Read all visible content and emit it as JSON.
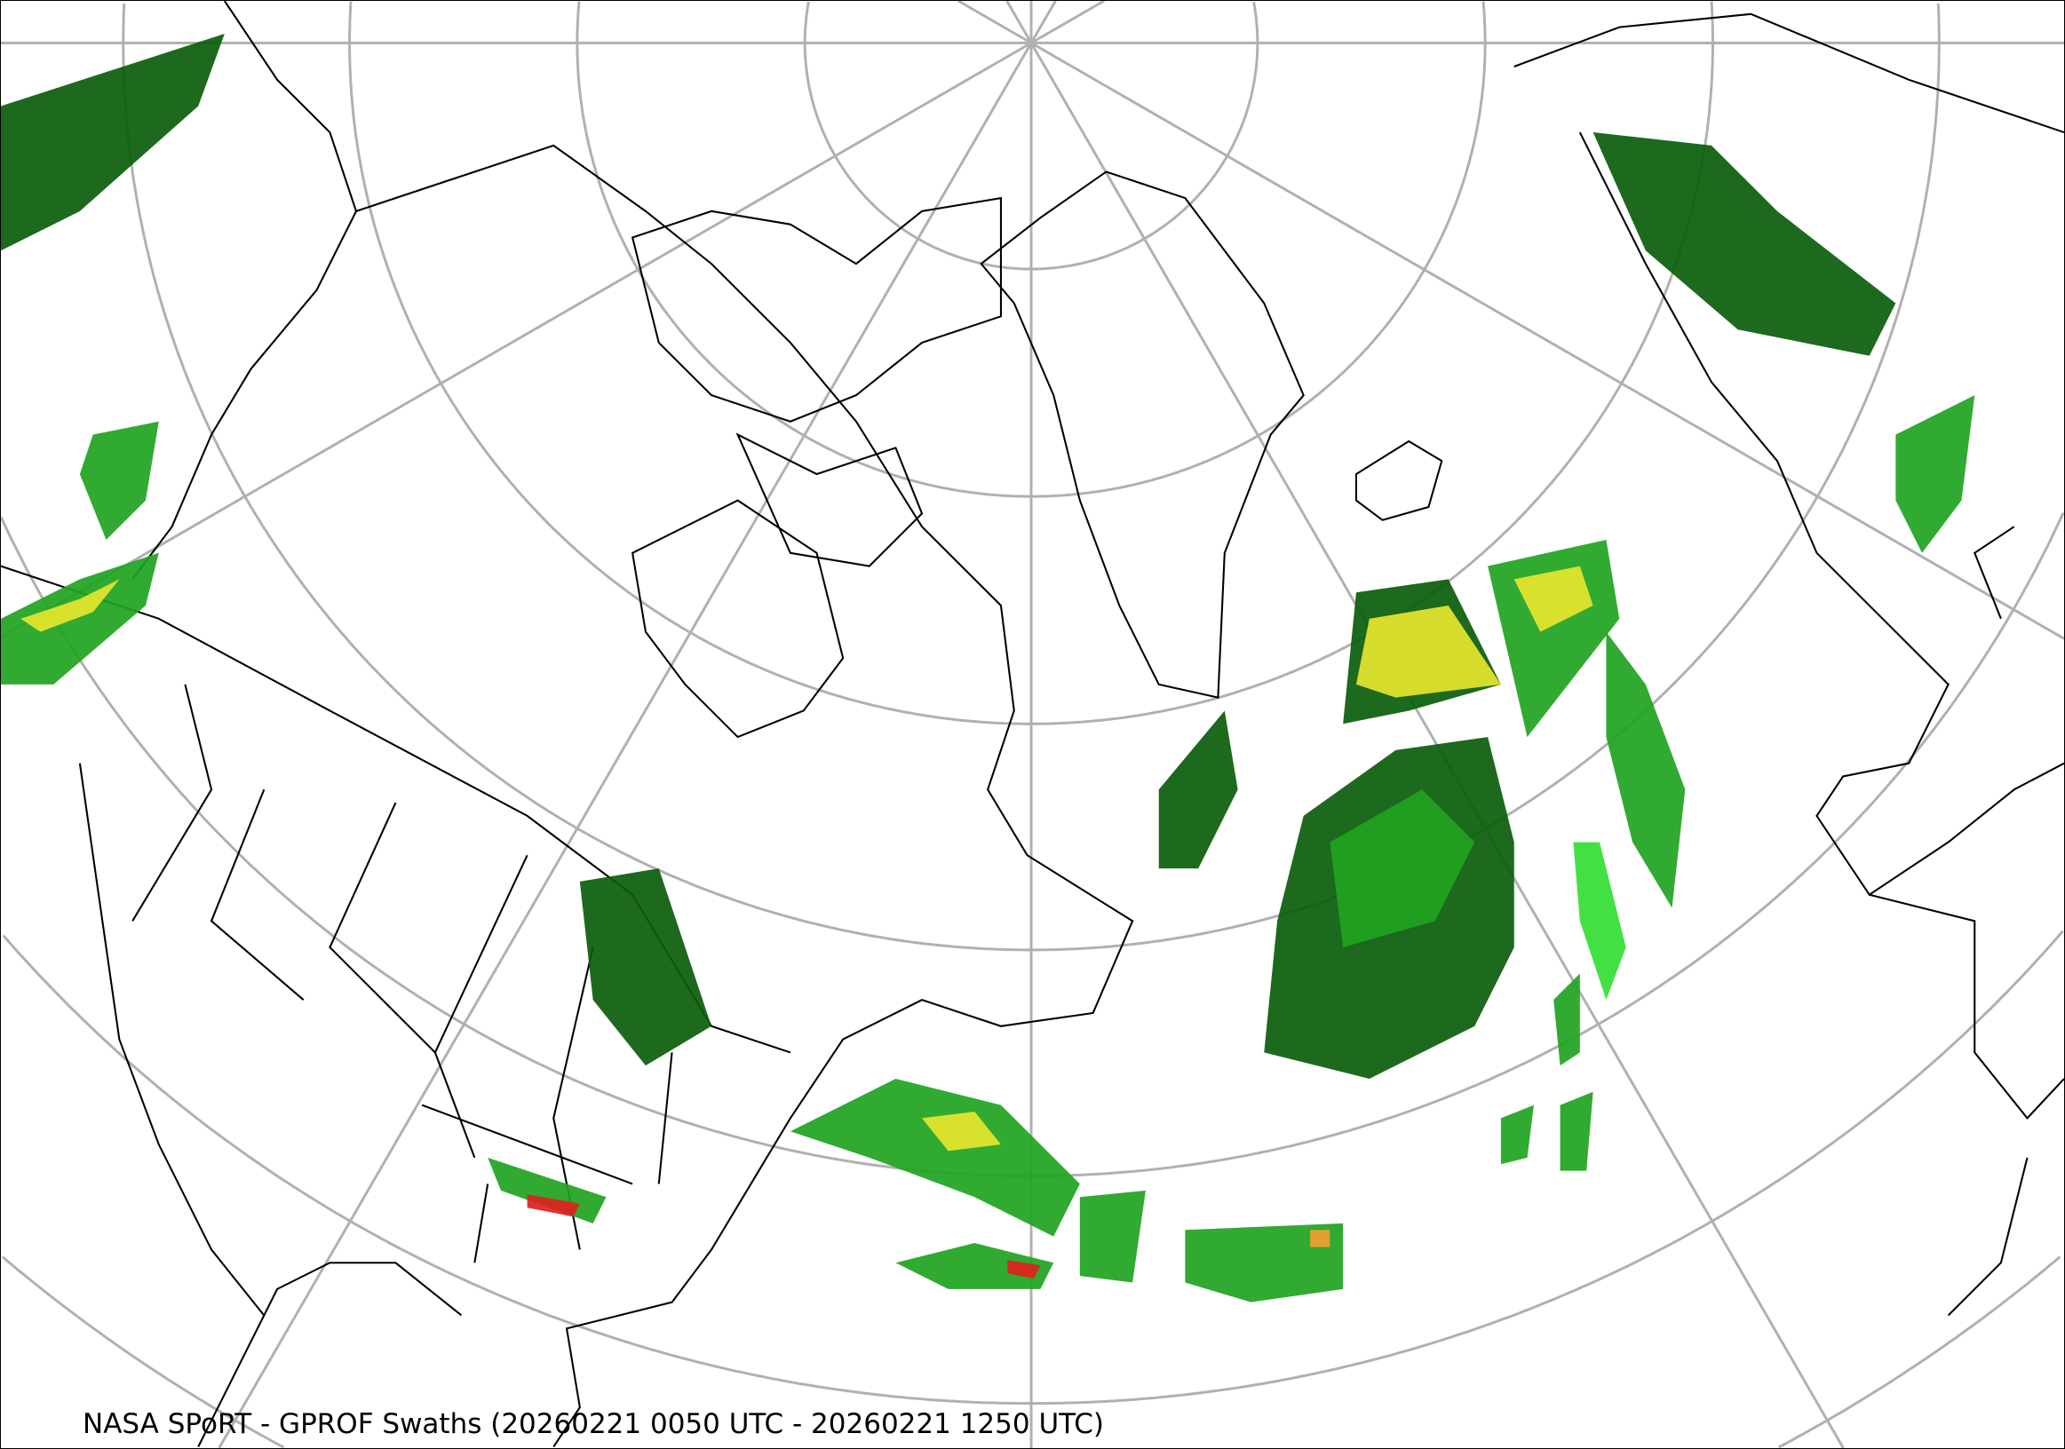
{
  "map": {
    "caption": "NASA SPoRT - GPROF Swaths (20260221 0050 UTC - 20260221 1250 UTC)",
    "projection": "polar stereographic (North Pole)",
    "colors": {
      "graticule": "#b0b0b0",
      "coastline": "#000000",
      "precip_light": "#0a5c0a",
      "precip_mod": "#1fa31f",
      "precip_bright": "#33dd33",
      "precip_heavy": "#e6e62e",
      "precip_intense": "#f0a030",
      "precip_extreme": "#e02020"
    }
  }
}
